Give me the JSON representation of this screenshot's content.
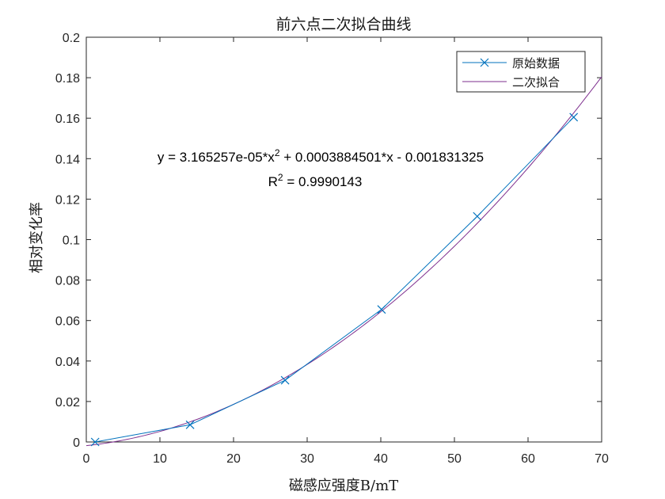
{
  "chart_data": {
    "type": "line",
    "title": "前六点二次拟合曲线",
    "xlabel": "磁感应强度B/mT",
    "ylabel": "相对变化率",
    "xlim": [
      0,
      70
    ],
    "ylim": [
      0,
      0.2
    ],
    "x_ticks": [
      "0",
      "10",
      "20",
      "30",
      "40",
      "50",
      "60",
      "70"
    ],
    "y_ticks": [
      "0",
      "0.02",
      "0.04",
      "0.06",
      "0.08",
      "0.1",
      "0.12",
      "0.14",
      "0.16",
      "0.18",
      "0.2"
    ],
    "grid": false,
    "legend_position": "top-right",
    "series": [
      {
        "name": "原始数据",
        "color": "#0072BD",
        "marker": "x",
        "x": [
          1.2,
          14.1,
          27.0,
          40.1,
          53.1,
          66.2
        ],
        "y": [
          0.0,
          0.0085,
          0.0305,
          0.0655,
          0.1115,
          0.1605
        ]
      },
      {
        "name": "二次拟合",
        "color": "#7E2F8E",
        "marker": "none",
        "fit": {
          "a": 3.165257e-05,
          "b": 0.0003884501,
          "c": -0.001831325,
          "x_range": [
            0,
            70
          ]
        }
      }
    ],
    "annotations": {
      "equation_parts": [
        "y = 3.165257e-05*x",
        "2",
        " + 0.0003884501*x - 0.001831325"
      ],
      "r2_parts": [
        "R",
        "2",
        " = 0.9990143"
      ]
    }
  }
}
